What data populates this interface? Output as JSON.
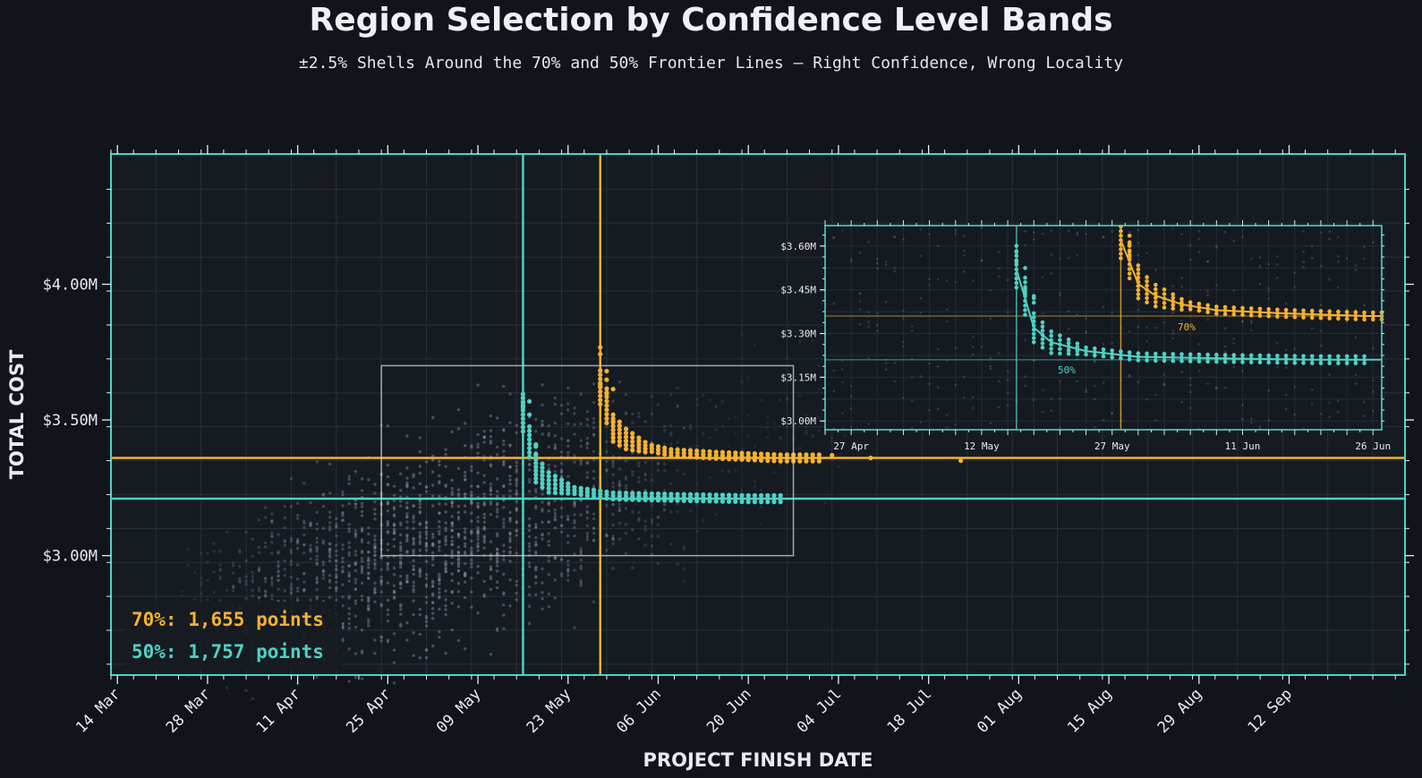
{
  "title": "Region Selection by Confidence Level Bands",
  "subtitle": "±2.5% Shells Around the 70% and 50% Frontier Lines — Right Confidence, Wrong Locality",
  "colors": {
    "background": "#11151b",
    "plot_background": "#161b21",
    "frame": "#4fd1c5",
    "band_70": "#f5b131",
    "band_50": "#4fd1c5",
    "cloud": "#7d8da3",
    "zoom_box": "#c8cdd4"
  },
  "chart_data": {
    "type": "scatter",
    "title": "Region Selection by Confidence Level Bands",
    "subtitle": "±2.5% Shells Around the 70% and 50% Frontier Lines — Right Confidence, Wrong Locality",
    "xlabel": "PROJECT FINISH DATE",
    "ylabel": "TOTAL COST",
    "x_type": "date",
    "xlim": [
      "2024-03-13",
      "2024-09-30"
    ],
    "ylim": [
      2.56,
      4.48
    ],
    "y_unit": "$M",
    "x_ticks": [
      {
        "date": "2024-03-14",
        "label": "14 Mar"
      },
      {
        "date": "2024-03-28",
        "label": "28 Mar"
      },
      {
        "date": "2024-04-11",
        "label": "11 Apr"
      },
      {
        "date": "2024-04-25",
        "label": "25 Apr"
      },
      {
        "date": "2024-05-09",
        "label": "09 May"
      },
      {
        "date": "2024-05-23",
        "label": "23 May"
      },
      {
        "date": "2024-06-06",
        "label": "06 Jun"
      },
      {
        "date": "2024-06-20",
        "label": "20 Jun"
      },
      {
        "date": "2024-07-04",
        "label": "04 Jul"
      },
      {
        "date": "2024-07-18",
        "label": "18 Jul"
      },
      {
        "date": "2024-08-01",
        "label": "01 Aug"
      },
      {
        "date": "2024-08-15",
        "label": "15 Aug"
      },
      {
        "date": "2024-08-29",
        "label": "29 Aug"
      },
      {
        "date": "2024-09-12",
        "label": "12 Sep"
      }
    ],
    "y_ticks": [
      {
        "value": 3.0,
        "label": "$3.00M"
      },
      {
        "value": 3.5,
        "label": "$3.50M"
      },
      {
        "value": 4.0,
        "label": "$4.00M"
      }
    ],
    "grid": true,
    "series": [
      {
        "name": "70%",
        "color": "#f5b131",
        "points": 1655,
        "frontier_date": "2024-05-28",
        "frontier_cost": 3.36,
        "band_curve": [
          [
            "2024-05-28",
            3.62
          ],
          [
            "2024-05-30",
            3.47
          ],
          [
            "2024-06-01",
            3.43
          ],
          [
            "2024-06-04",
            3.4
          ],
          [
            "2024-06-08",
            3.38
          ],
          [
            "2024-06-15",
            3.37
          ],
          [
            "2024-06-25",
            3.36
          ],
          [
            "2024-07-01",
            3.36
          ]
        ],
        "outliers": [
          [
            "2024-07-03",
            3.37
          ],
          [
            "2024-07-09",
            3.36
          ],
          [
            "2024-07-23",
            3.35
          ]
        ]
      },
      {
        "name": "50%",
        "color": "#4fd1c5",
        "points": 1757,
        "frontier_date": "2024-05-16",
        "frontier_cost": 3.21,
        "band_curve": [
          [
            "2024-05-16",
            3.52
          ],
          [
            "2024-05-18",
            3.32
          ],
          [
            "2024-05-20",
            3.27
          ],
          [
            "2024-05-24",
            3.24
          ],
          [
            "2024-05-30",
            3.22
          ],
          [
            "2024-06-08",
            3.215
          ],
          [
            "2024-06-20",
            3.21
          ],
          [
            "2024-06-25",
            3.21
          ]
        ],
        "outliers": []
      }
    ],
    "zoom_region": {
      "x": [
        "2024-04-24",
        "2024-06-27"
      ],
      "y": [
        3.0,
        3.7
      ]
    },
    "legend_placement": "bottom-left",
    "inset": {
      "xlim": [
        "2024-04-24",
        "2024-06-27"
      ],
      "ylim": [
        2.97,
        3.67
      ],
      "x_ticks": [
        {
          "date": "2024-04-27",
          "label": "27 Apr"
        },
        {
          "date": "2024-05-12",
          "label": "12 May"
        },
        {
          "date": "2024-05-27",
          "label": "27 May"
        },
        {
          "date": "2024-06-11",
          "label": "11 Jun"
        },
        {
          "date": "2024-06-26",
          "label": "26 Jun"
        }
      ],
      "y_ticks": [
        {
          "value": 3.0,
          "label": "$3.00M"
        },
        {
          "value": 3.15,
          "label": "$3.15M"
        },
        {
          "value": 3.3,
          "label": "$3.30M"
        },
        {
          "value": 3.45,
          "label": "$3.45M"
        },
        {
          "value": 3.6,
          "label": "$3.60M"
        }
      ],
      "band_labels": [
        "70%",
        "50%"
      ]
    }
  },
  "legend": {
    "line_70": "70%: 1,655 points",
    "line_50": "50%: 1,757 points"
  }
}
